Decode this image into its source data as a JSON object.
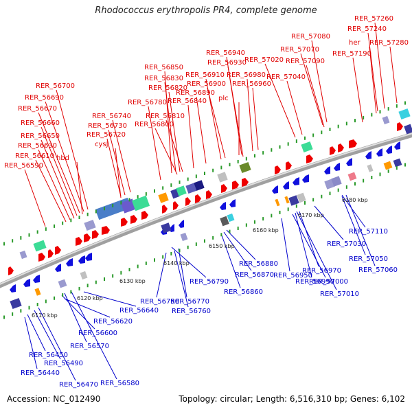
{
  "title": "Rhodococcus erythropolis PR4, complete genome",
  "footer": {
    "accession": "Accession: NC_012490",
    "topology": "Topology: circular; Length: 6,516,310 bp; Genes: 6,102"
  },
  "scale_labels": [
    "6110 kbp",
    "6120 kbp",
    "6130 kbp",
    "6140 kbp",
    "6150 kbp",
    "6160 kbp",
    "6170 kbp",
    "6180 kbp"
  ],
  "top_labels": [
    "RER_57260",
    "RER_57240",
    "RER_57280",
    "her",
    "RER_57190",
    "RER_57080",
    "RER_57070",
    "RER_57090",
    "RER_56940",
    "RER_56930",
    "RER_57020",
    "RER_57040",
    "RER_56980",
    "RER_56960",
    "RER_56910",
    "RER_56900",
    "RER_56890",
    "plc",
    "RER_56850",
    "RER_56830",
    "RER_56820",
    "RER_56840",
    "RER_56780",
    "RER_56810",
    "RER_56800",
    "RER_56740",
    "RER_56730",
    "RER_56720",
    "cysJ",
    "RER_56700",
    "RER_56690",
    "RER_56670",
    "RER_56660",
    "RER_56650",
    "RER_56630",
    "RER_56610",
    "hbd",
    "RER_56590"
  ],
  "bottom_labels": [
    "RER_56450",
    "RER_56490",
    "RER_56440",
    "RER_56470",
    "RER_56580",
    "RER_56570",
    "RER_56600",
    "RER_56620",
    "RER_56640",
    "RER_56750",
    "RER_56770",
    "RER_56760",
    "RER_56790",
    "RER_56880",
    "RER_56870",
    "RER_56860",
    "RER_56950",
    "RER_56970",
    "RER_56990",
    "RER_57030",
    "RER_57000",
    "RER_57010",
    "RER_57050",
    "RER_57060",
    "RER_57110"
  ]
}
